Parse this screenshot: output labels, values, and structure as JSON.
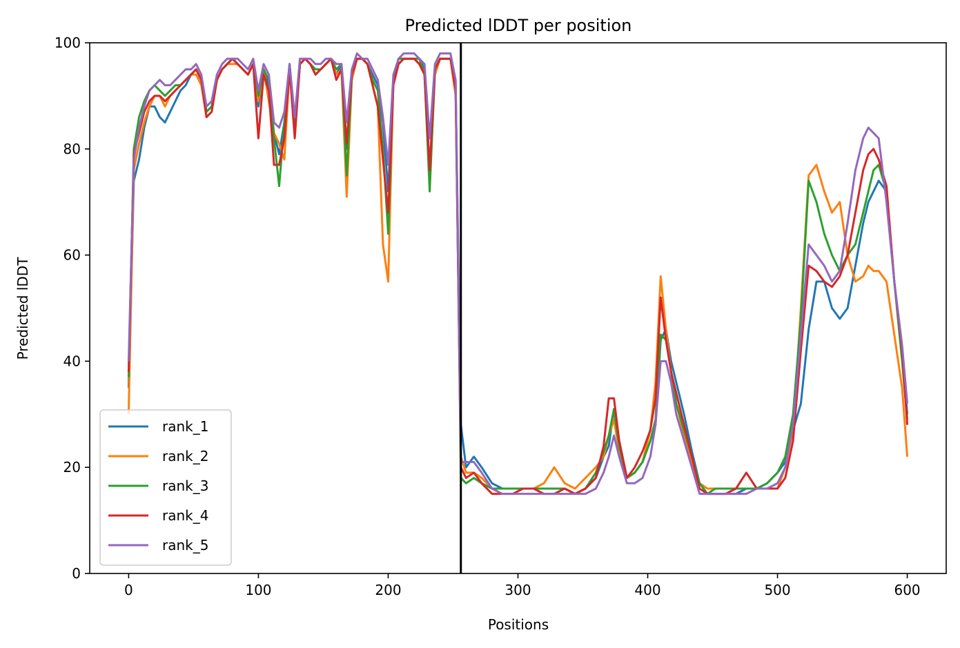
{
  "chart_data": {
    "type": "line",
    "title": "Predicted lDDT per position",
    "xlabel": "Positions",
    "ylabel": "Predicted lDDT",
    "xlim": [
      -30,
      630
    ],
    "ylim": [
      0,
      100
    ],
    "xticks": [
      0,
      100,
      200,
      300,
      400,
      500,
      600
    ],
    "yticks": [
      0,
      20,
      40,
      60,
      80,
      100
    ],
    "vline": 256,
    "grid": false,
    "legend_position": "lower-left",
    "x": [
      0,
      4,
      8,
      12,
      16,
      20,
      24,
      28,
      32,
      36,
      40,
      44,
      48,
      52,
      56,
      60,
      64,
      68,
      72,
      76,
      80,
      84,
      88,
      92,
      96,
      100,
      104,
      108,
      112,
      116,
      120,
      124,
      128,
      132,
      136,
      140,
      144,
      148,
      152,
      156,
      160,
      164,
      168,
      172,
      176,
      180,
      184,
      188,
      192,
      196,
      200,
      204,
      208,
      212,
      216,
      220,
      224,
      228,
      232,
      236,
      240,
      244,
      248,
      252,
      256,
      260,
      266,
      272,
      280,
      288,
      296,
      304,
      312,
      320,
      328,
      336,
      344,
      352,
      360,
      366,
      370,
      374,
      378,
      384,
      390,
      396,
      402,
      406,
      410,
      414,
      418,
      422,
      428,
      434,
      440,
      446,
      452,
      460,
      468,
      476,
      484,
      492,
      500,
      506,
      512,
      518,
      524,
      530,
      536,
      542,
      548,
      554,
      560,
      566,
      570,
      574,
      578,
      584,
      590,
      596,
      600
    ],
    "series": [
      {
        "name": "rank_1",
        "color": "#1f77b4",
        "values": [
          35,
          74,
          78,
          84,
          88,
          88,
          86,
          85,
          87,
          89,
          91,
          92,
          94,
          95,
          93,
          87,
          88,
          93,
          95,
          96,
          97,
          96,
          95,
          94,
          96,
          88,
          95,
          92,
          83,
          79,
          85,
          96,
          84,
          96,
          97,
          96,
          94,
          95,
          96,
          97,
          94,
          96,
          80,
          95,
          97,
          97,
          96,
          94,
          92,
          85,
          72,
          93,
          97,
          97,
          97,
          97,
          97,
          95,
          76,
          95,
          97,
          97,
          97,
          92,
          28,
          20,
          22,
          20,
          17,
          16,
          16,
          16,
          16,
          16,
          16,
          16,
          15,
          16,
          18,
          22,
          24,
          31,
          25,
          18,
          19,
          21,
          25,
          28,
          44,
          46,
          40,
          36,
          30,
          23,
          17,
          15,
          15,
          15,
          15,
          16,
          16,
          17,
          19,
          21,
          27,
          32,
          46,
          55,
          55,
          50,
          48,
          50,
          58,
          66,
          70,
          72,
          74,
          72,
          55,
          42,
          30
        ]
      },
      {
        "name": "rank_2",
        "color": "#ff7f0e",
        "values": [
          30,
          76,
          81,
          85,
          88,
          90,
          90,
          88,
          90,
          91,
          92,
          93,
          94,
          94,
          92,
          86,
          87,
          93,
          95,
          96,
          96,
          96,
          95,
          94,
          96,
          89,
          95,
          89,
          83,
          81,
          78,
          95,
          83,
          96,
          97,
          96,
          94,
          95,
          96,
          97,
          94,
          95,
          71,
          93,
          97,
          97,
          96,
          92,
          88,
          62,
          55,
          93,
          96,
          97,
          97,
          97,
          96,
          94,
          73,
          94,
          97,
          97,
          97,
          90,
          22,
          19,
          19,
          18,
          16,
          16,
          16,
          16,
          16,
          17,
          20,
          17,
          16,
          18,
          20,
          22,
          26,
          29,
          23,
          18,
          19,
          21,
          27,
          36,
          56,
          46,
          38,
          32,
          26,
          21,
          17,
          16,
          16,
          16,
          16,
          16,
          16,
          16,
          16,
          20,
          27,
          50,
          75,
          77,
          72,
          68,
          70,
          60,
          55,
          56,
          58,
          57,
          57,
          55,
          45,
          35,
          22
        ]
      },
      {
        "name": "rank_3",
        "color": "#2ca02c",
        "values": [
          37,
          80,
          86,
          89,
          91,
          92,
          91,
          90,
          91,
          92,
          92,
          93,
          94,
          95,
          93,
          87,
          88,
          93,
          95,
          96,
          97,
          96,
          95,
          94,
          96,
          90,
          95,
          93,
          82,
          73,
          85,
          96,
          84,
          96,
          97,
          96,
          95,
          95,
          96,
          97,
          95,
          96,
          75,
          94,
          97,
          97,
          96,
          93,
          91,
          80,
          64,
          93,
          97,
          97,
          97,
          97,
          97,
          94,
          72,
          95,
          97,
          97,
          97,
          92,
          18,
          17,
          18,
          17,
          16,
          16,
          16,
          16,
          16,
          16,
          16,
          16,
          15,
          16,
          19,
          23,
          26,
          31,
          24,
          18,
          19,
          21,
          25,
          29,
          45,
          44,
          38,
          32,
          27,
          22,
          17,
          15,
          16,
          16,
          16,
          16,
          16,
          17,
          19,
          22,
          30,
          48,
          74,
          70,
          64,
          60,
          57,
          60,
          62,
          68,
          72,
          76,
          77,
          72,
          55,
          40,
          29
        ]
      },
      {
        "name": "rank_4",
        "color": "#d62728",
        "values": [
          38,
          79,
          83,
          87,
          89,
          90,
          90,
          89,
          90,
          91,
          92,
          93,
          94,
          95,
          93,
          86,
          87,
          93,
          95,
          96,
          97,
          96,
          95,
          94,
          96,
          82,
          94,
          91,
          77,
          77,
          82,
          95,
          82,
          96,
          97,
          96,
          94,
          95,
          96,
          97,
          93,
          95,
          81,
          94,
          97,
          97,
          96,
          92,
          88,
          78,
          68,
          92,
          96,
          97,
          97,
          97,
          96,
          94,
          76,
          95,
          97,
          97,
          97,
          91,
          20,
          18,
          19,
          17,
          15,
          15,
          15,
          16,
          16,
          15,
          15,
          16,
          15,
          16,
          18,
          24,
          33,
          33,
          25,
          18,
          20,
          23,
          27,
          33,
          52,
          44,
          38,
          34,
          28,
          22,
          16,
          15,
          15,
          15,
          16,
          19,
          16,
          16,
          16,
          18,
          25,
          42,
          58,
          57,
          55,
          54,
          56,
          60,
          68,
          76,
          79,
          80,
          78,
          73,
          55,
          42,
          28
        ]
      },
      {
        "name": "rank_5",
        "color": "#9467bd",
        "values": [
          40,
          78,
          84,
          88,
          91,
          92,
          93,
          92,
          92,
          93,
          94,
          95,
          95,
          96,
          94,
          88,
          89,
          94,
          96,
          97,
          97,
          97,
          96,
          95,
          97,
          91,
          96,
          94,
          85,
          84,
          87,
          96,
          86,
          97,
          97,
          97,
          96,
          96,
          97,
          97,
          96,
          96,
          85,
          95,
          98,
          97,
          97,
          95,
          93,
          86,
          77,
          94,
          97,
          98,
          98,
          98,
          97,
          96,
          82,
          96,
          98,
          98,
          98,
          93,
          21,
          21,
          21,
          19,
          16,
          15,
          15,
          15,
          15,
          15,
          15,
          15,
          15,
          15,
          16,
          19,
          22,
          26,
          22,
          17,
          17,
          18,
          22,
          28,
          40,
          40,
          36,
          30,
          25,
          20,
          15,
          15,
          15,
          15,
          15,
          15,
          16,
          16,
          17,
          20,
          28,
          45,
          62,
          60,
          58,
          55,
          57,
          66,
          76,
          82,
          84,
          83,
          82,
          70,
          55,
          43,
          32
        ]
      }
    ]
  }
}
